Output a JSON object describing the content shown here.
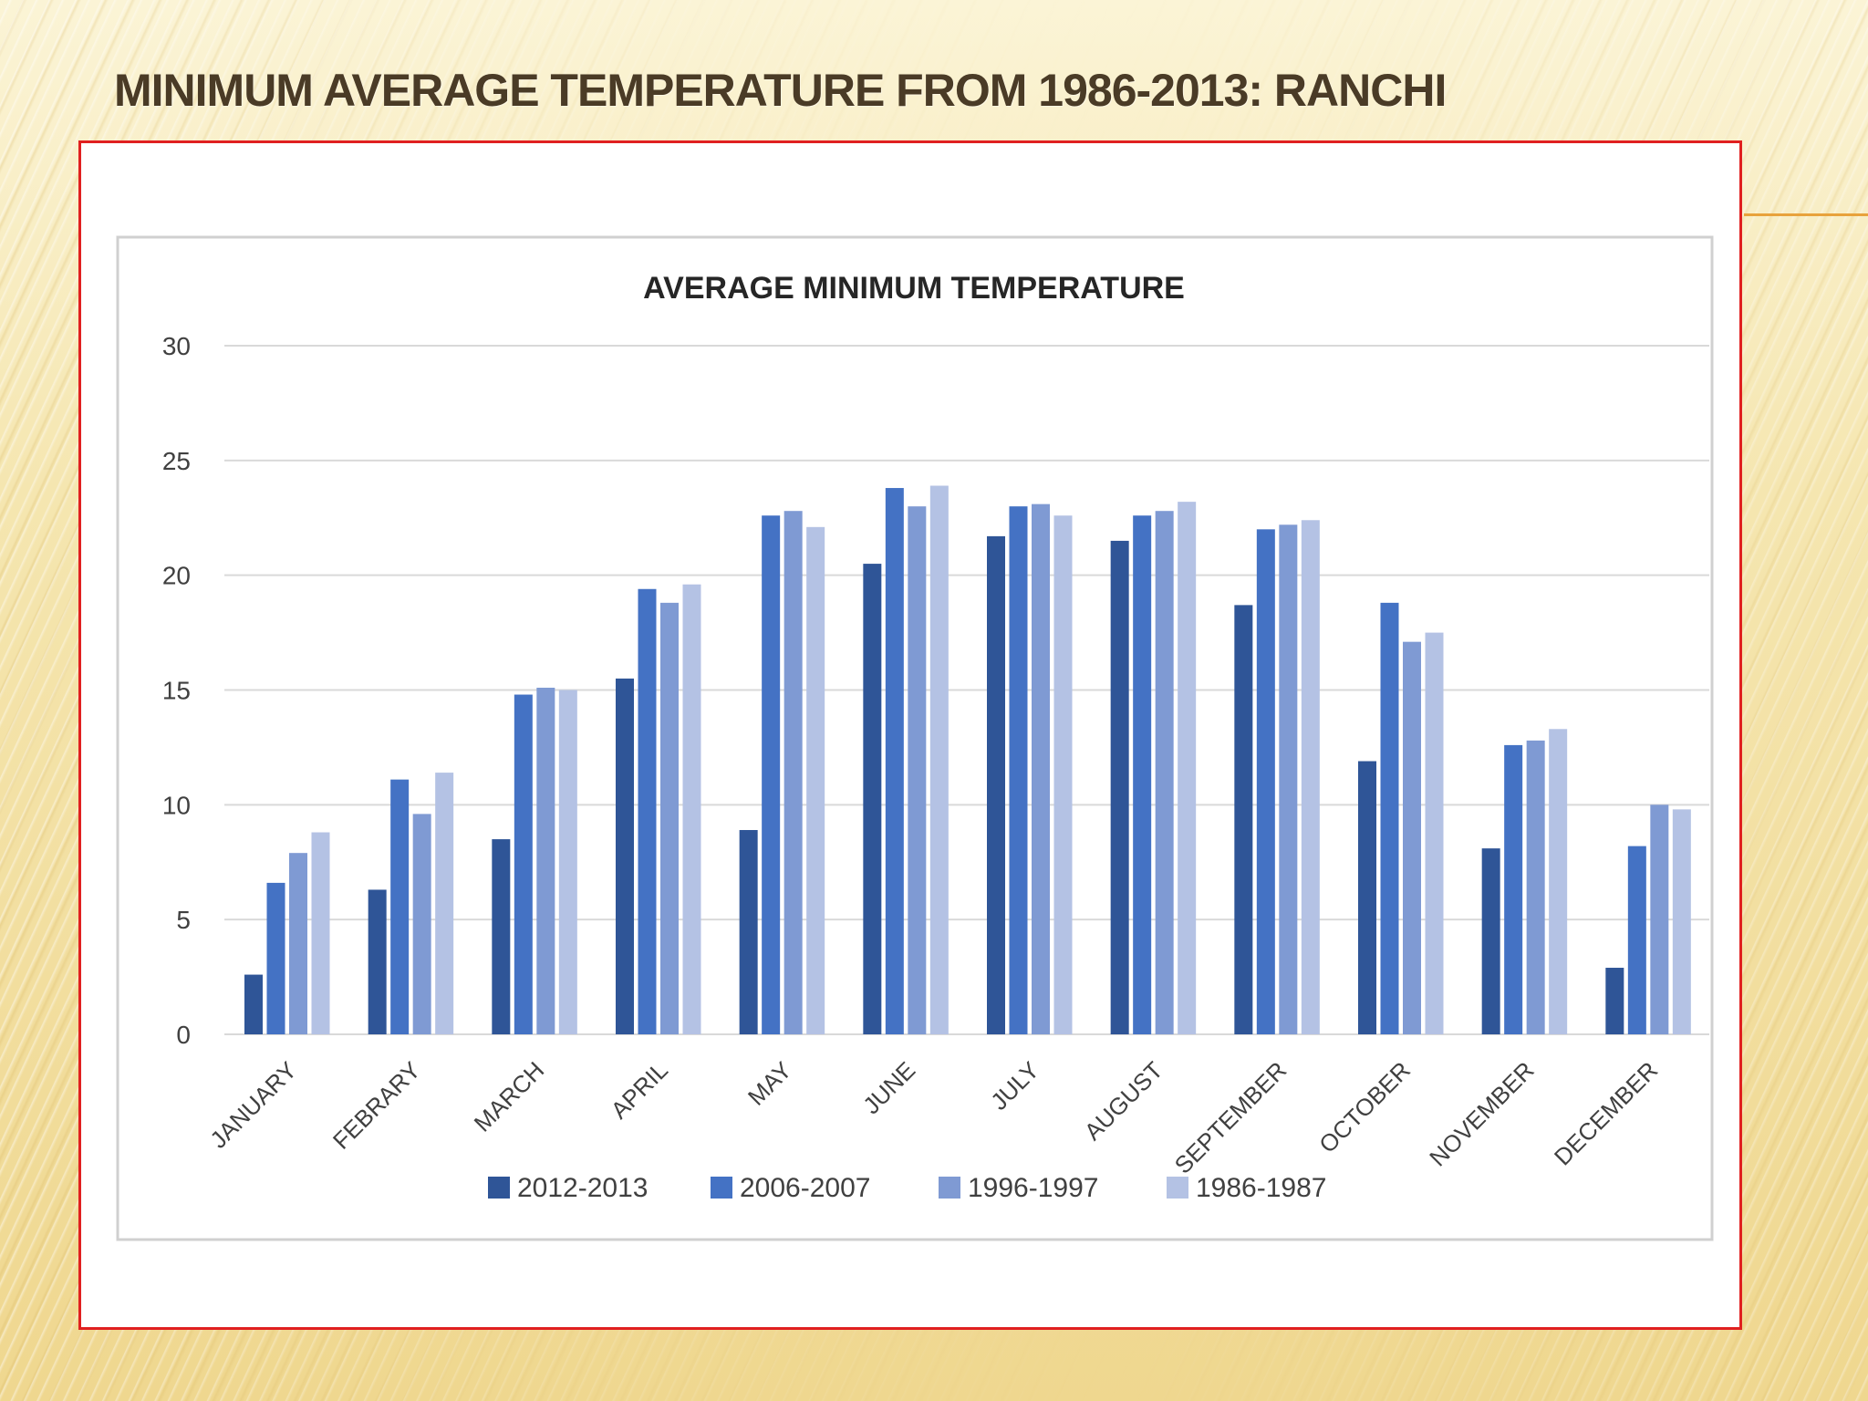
{
  "slide": {
    "title": "MINIMUM AVERAGE TEMPERATURE FROM 1986-2013: RANCHI"
  },
  "colors": {
    "series": [
      "#2f5597",
      "#4472c4",
      "#7f9ad3",
      "#b4c2e4"
    ],
    "frame_border": "#e02020",
    "title_text": "#4a3b26",
    "accent_line": "#e8a23c"
  },
  "chart_data": {
    "type": "bar",
    "title": "AVERAGE MINIMUM TEMPERATURE",
    "xlabel": "",
    "ylabel": "",
    "ylim": [
      0,
      30
    ],
    "yticks": [
      0,
      5,
      10,
      15,
      20,
      25,
      30
    ],
    "grid": true,
    "legend_position": "bottom",
    "categories": [
      "JANUARY",
      "FEBRARY",
      "MARCH",
      "APRIL",
      "MAY",
      "JUNE",
      "JULY",
      "AUGUST",
      "SEPTEMBER",
      "OCTOBER",
      "NOVEMBER",
      "DECEMBER"
    ],
    "series": [
      {
        "name": "2012-2013",
        "values": [
          2.6,
          6.3,
          8.5,
          15.5,
          8.9,
          20.5,
          21.7,
          21.5,
          18.7,
          11.9,
          8.1,
          2.9
        ]
      },
      {
        "name": "2006-2007",
        "values": [
          6.6,
          11.1,
          14.8,
          19.4,
          22.6,
          23.8,
          23.0,
          22.6,
          22.0,
          18.8,
          12.6,
          8.2
        ]
      },
      {
        "name": "1996-1997",
        "values": [
          7.9,
          9.6,
          15.1,
          18.8,
          22.8,
          23.0,
          23.1,
          22.8,
          22.2,
          17.1,
          12.8,
          10.0
        ]
      },
      {
        "name": "1986-1987",
        "values": [
          8.8,
          11.4,
          15.0,
          19.6,
          22.1,
          23.9,
          22.6,
          23.2,
          22.4,
          17.5,
          13.3,
          9.8
        ]
      }
    ]
  }
}
